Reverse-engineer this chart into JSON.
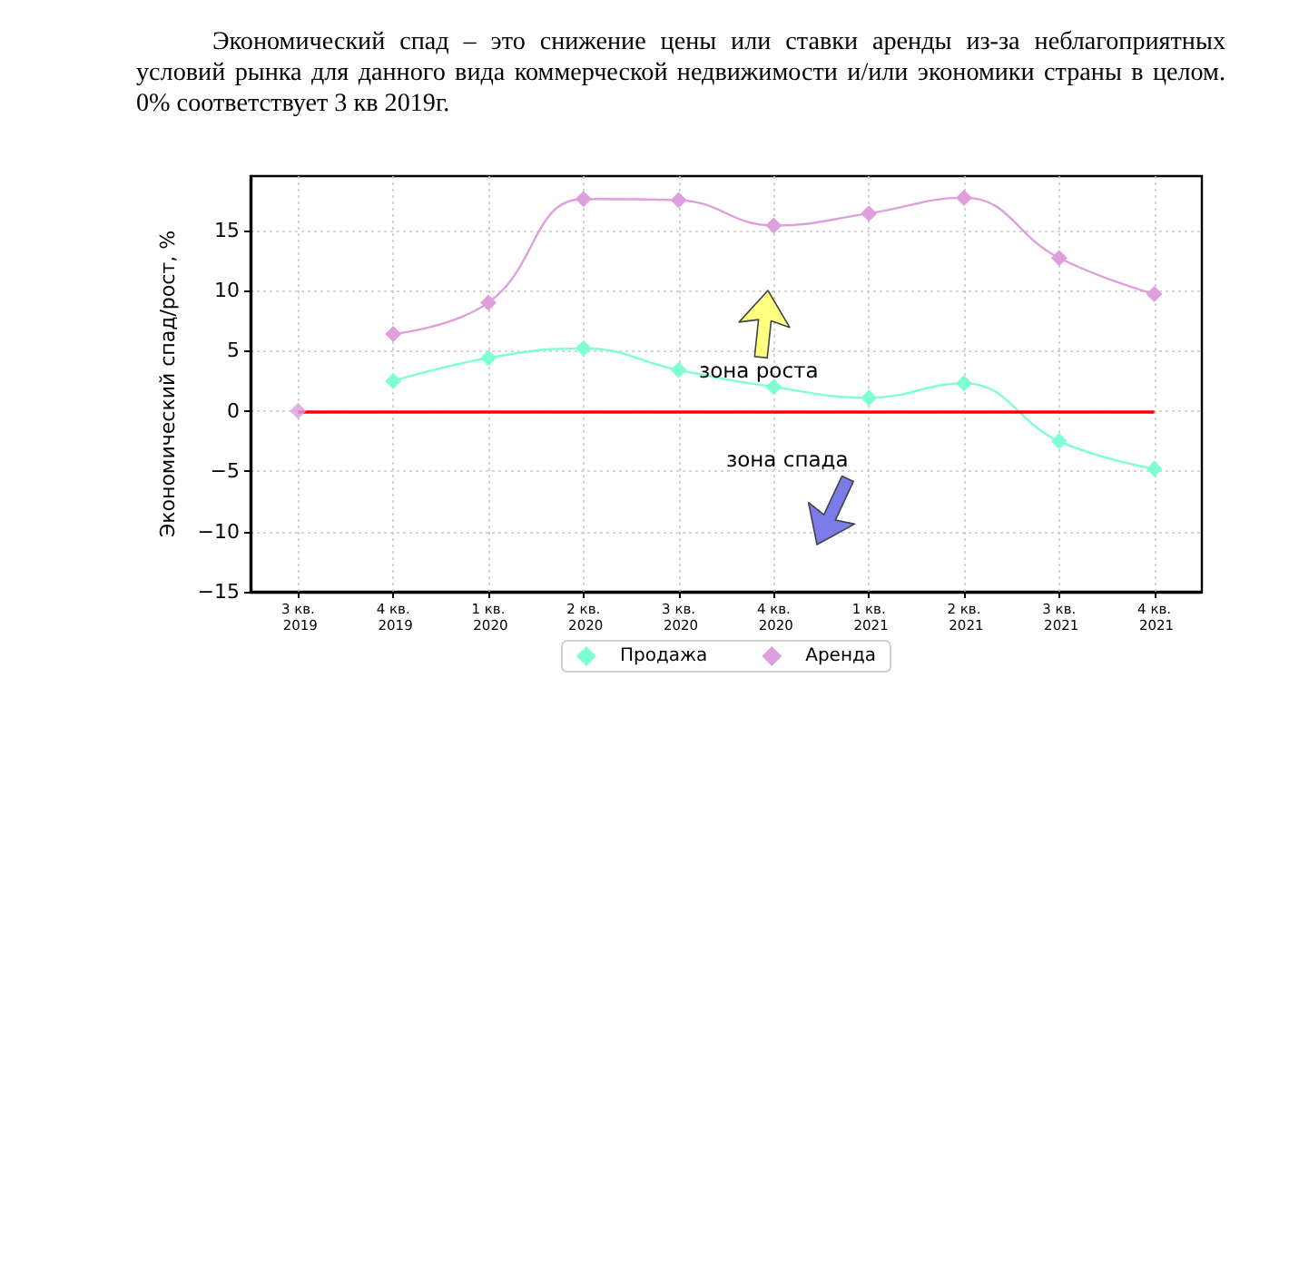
{
  "chart_data": {
    "type": "line",
    "title": "Экономический спад – это снижение цены или ставки аренды из-за неблагоприятных условий рынка для данного вида коммерческой недвижимости и/или экономики страны в целом. 0% соответствует 3 кв 2019г.",
    "ylabel": "Экономический спад/рост, %",
    "categories": [
      "3 кв. 2019",
      "4 кв. 2019",
      "1 кв. 2020",
      "2 кв. 2020",
      "3 кв. 2020",
      "4 кв. 2020",
      "1 кв. 2021",
      "2 кв. 2021",
      "3 кв. 2021",
      "4 кв. 2021"
    ],
    "series": [
      {
        "name": "Продажа",
        "color": "#7fffd4",
        "values": [
          null,
          2.5,
          4.4,
          5.2,
          3.4,
          2.0,
          1.1,
          2.3,
          -2.5,
          -4.8
        ]
      },
      {
        "name": "Аренда",
        "color": "#dda0dd",
        "values": [
          null,
          6.4,
          9,
          17.6,
          17.5,
          15.4,
          16.4,
          17.7,
          12.7,
          9.7
        ]
      },
      {
        "type": "scatter",
        "color": "#dda0dd",
        "values": [
          0,
          null,
          null,
          null,
          null,
          null,
          null,
          null,
          null,
          null
        ]
      }
    ],
    "ylim": [
      -15,
      19.5
    ],
    "yticks": [
      {
        "value": -15,
        "label": "−15"
      },
      {
        "value": -10,
        "label": "−10"
      },
      {
        "value": -5,
        "label": "−5"
      },
      0,
      5,
      10,
      15
    ],
    "grid": true,
    "legend": "bottom",
    "marker": "diamond",
    "line_style": "solid",
    "ref_lines": [
      {
        "axis": "y",
        "value": 0,
        "color": "#ff0000"
      }
    ],
    "annotations": [
      "зона роста",
      "зона спада"
    ]
  }
}
